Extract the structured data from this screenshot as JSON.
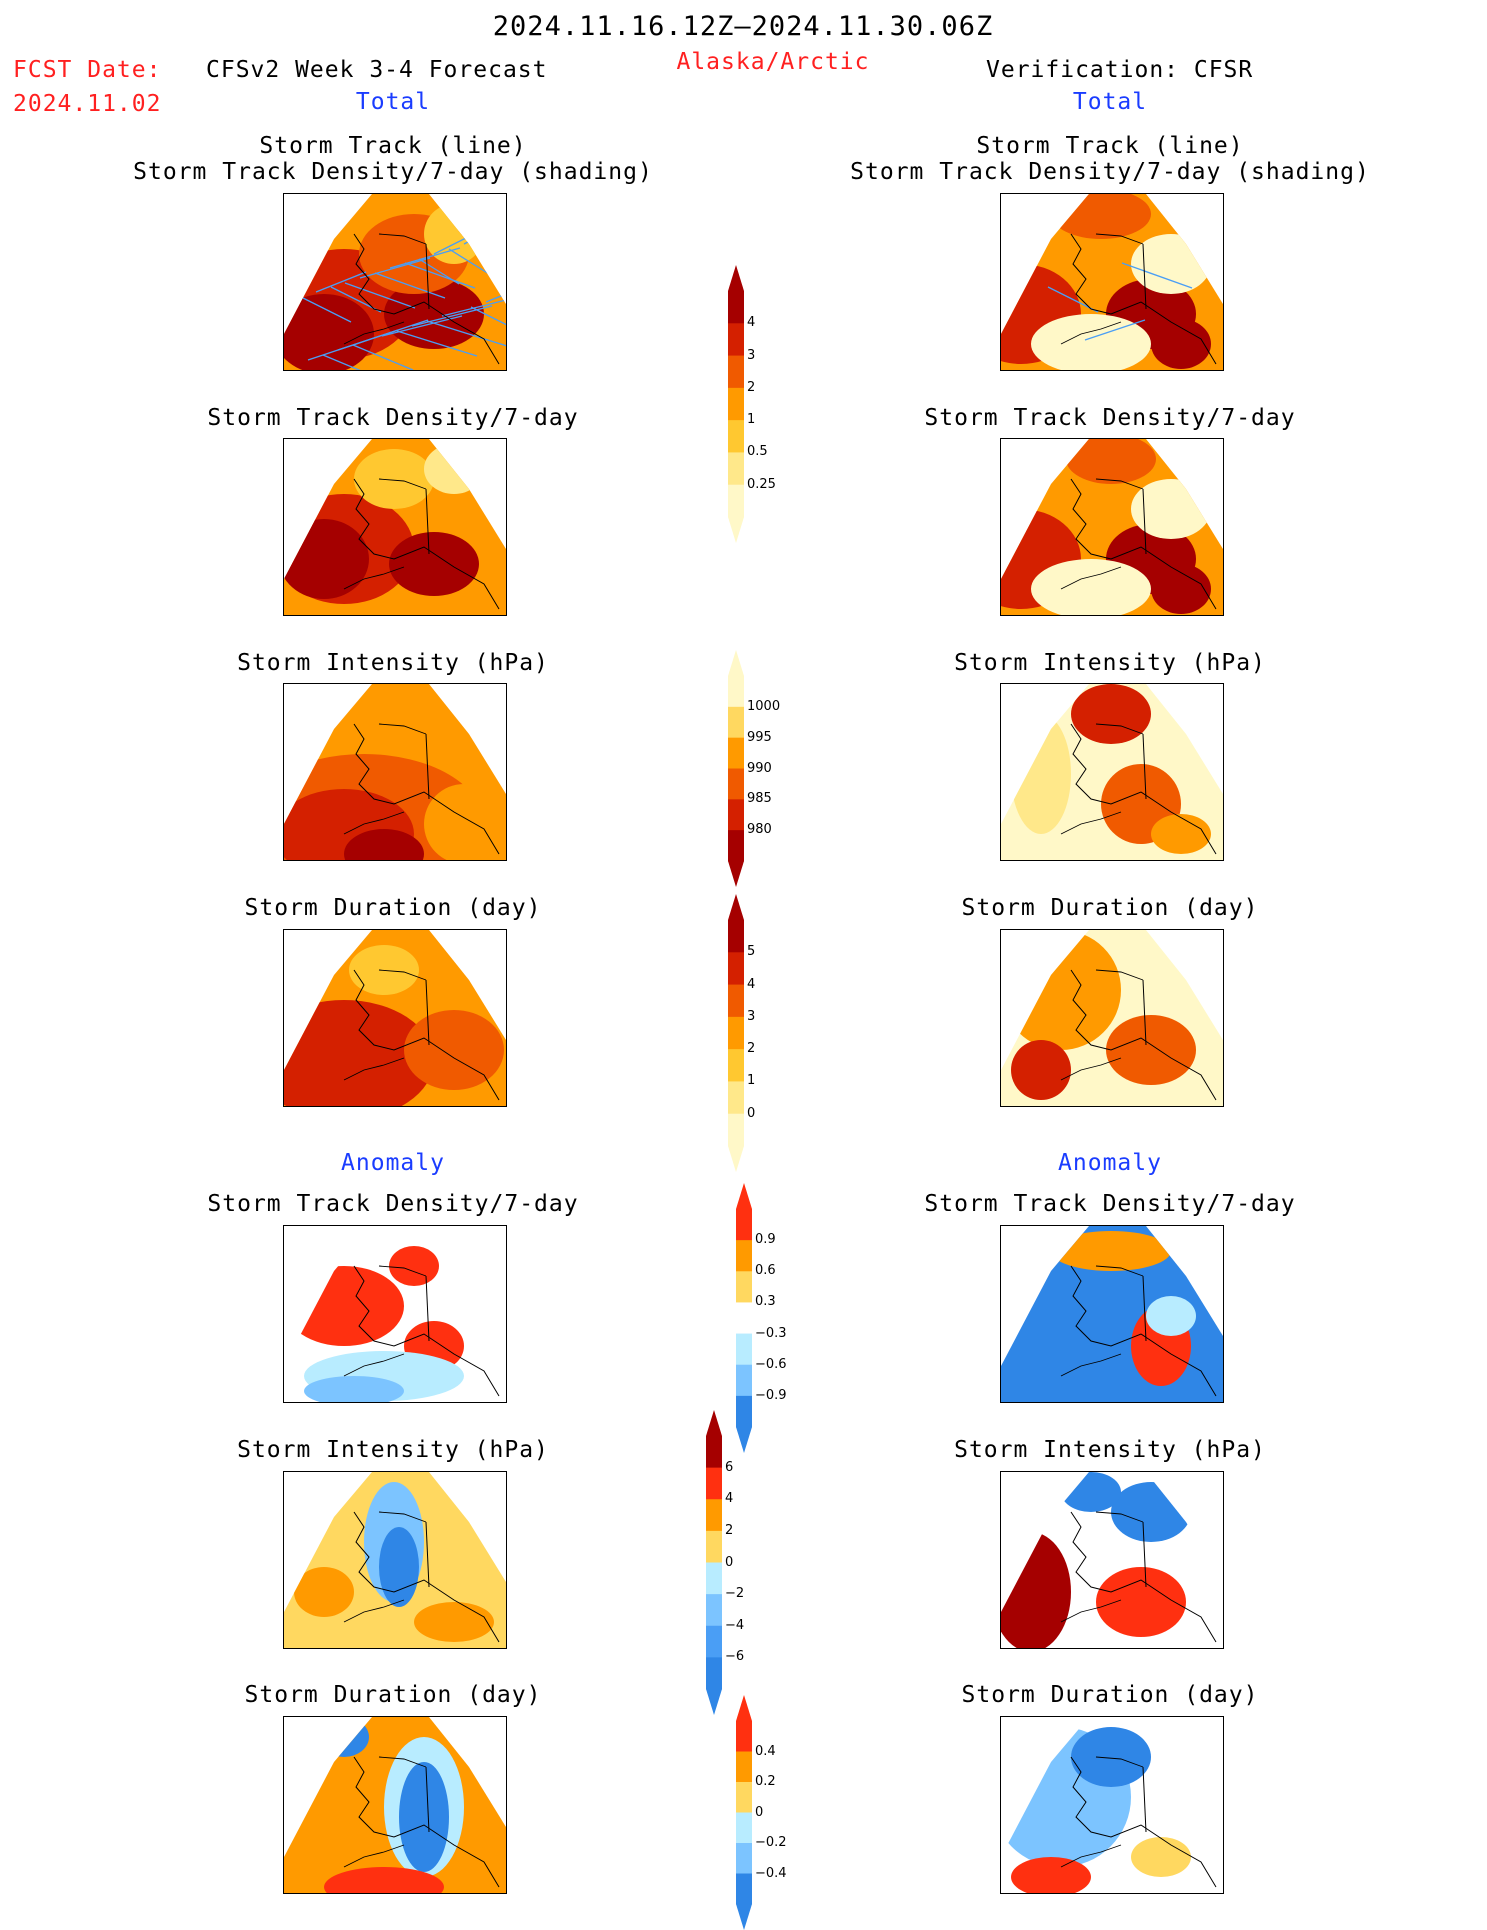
{
  "header": {
    "period": "2024.11.16.12Z–2024.11.30.06Z",
    "fcst_label": "FCST Date:",
    "fcst_date": "2024.11.02",
    "model": "CFSv2 Week 3-4 Forecast",
    "region": "Alaska/Arctic",
    "verification": "Verification: CFSR"
  },
  "columns": [
    {
      "total_label": "Total",
      "anomaly_label": "Anomaly",
      "panels": [
        {
          "title": [
            "Storm Track (line)",
            "Storm Track Density/7-day (shading)"
          ],
          "field": "track-density",
          "palette": "warm"
        },
        {
          "title": [
            "Storm Track Density/7-day"
          ],
          "field": "density",
          "palette": "warm"
        },
        {
          "title": [
            "Storm Intensity (hPa)"
          ],
          "field": "intensity",
          "palette": "warm"
        },
        {
          "title": [
            "Storm Duration (day)"
          ],
          "field": "duration",
          "palette": "warm"
        },
        {
          "title": [
            "Storm Track Density/7-day"
          ],
          "field": "density-anomaly",
          "palette": "diverging"
        },
        {
          "title": [
            "Storm Intensity (hPa)"
          ],
          "field": "intensity-anomaly",
          "palette": "diverging"
        },
        {
          "title": [
            "Storm Duration (day)"
          ],
          "field": "duration-anomaly",
          "palette": "diverging"
        }
      ]
    },
    {
      "total_label": "Total",
      "anomaly_label": "Anomaly",
      "panels": [
        {
          "title": [
            "Storm Track (line)",
            "Storm Track Density/7-day (shading)"
          ],
          "field": "track-density",
          "palette": "warm"
        },
        {
          "title": [
            "Storm Track Density/7-day"
          ],
          "field": "density",
          "palette": "warm"
        },
        {
          "title": [
            "Storm Intensity (hPa)"
          ],
          "field": "intensity",
          "palette": "warm"
        },
        {
          "title": [
            "Storm Duration (day)"
          ],
          "field": "duration",
          "palette": "warm"
        },
        {
          "title": [
            "Storm Track Density/7-day"
          ],
          "field": "density-anomaly",
          "palette": "diverging"
        },
        {
          "title": [
            "Storm Intensity (hPa)"
          ],
          "field": "intensity-anomaly",
          "palette": "diverging"
        },
        {
          "title": [
            "Storm Duration (day)"
          ],
          "field": "duration-anomaly",
          "palette": "diverging"
        }
      ]
    }
  ],
  "colorbars": [
    {
      "name": "density",
      "labels": [
        "4",
        "3",
        "2",
        "1",
        "0.5",
        "0.25"
      ],
      "colors": [
        "#a50000",
        "#d42000",
        "#f05a00",
        "#ff9a00",
        "#ffc830",
        "#ffe88a",
        "#fff8c8"
      ],
      "palette": "warm"
    },
    {
      "name": "intensity",
      "labels": [
        "1000",
        "995",
        "990",
        "985",
        "980"
      ],
      "colors": [
        "#fff8c8",
        "#ffd860",
        "#ff9a00",
        "#f05a00",
        "#d42000",
        "#a50000"
      ],
      "palette": "warm-reversed"
    },
    {
      "name": "duration",
      "labels": [
        "5",
        "4",
        "3",
        "2",
        "1",
        "0"
      ],
      "colors": [
        "#a50000",
        "#d42000",
        "#f05a00",
        "#ff9a00",
        "#ffc830",
        "#ffe88a",
        "#fff8c8"
      ],
      "palette": "warm"
    },
    {
      "name": "density-anomaly",
      "labels": [
        "0.9",
        "0.6",
        "0.3",
        "−0.3",
        "−0.6",
        "−0.9"
      ],
      "colors": [
        "#ff3010",
        "#ff9a00",
        "#ffd860",
        "#ffffff",
        "#b8ecff",
        "#7cc4ff",
        "#2f86e6"
      ],
      "palette": "diverging"
    },
    {
      "name": "intensity-anomaly",
      "labels": [
        "6",
        "4",
        "2",
        "0",
        "−2",
        "−4",
        "−6"
      ],
      "colors": [
        "#a50000",
        "#ff3010",
        "#ff9a00",
        "#ffd860",
        "#b8ecff",
        "#7cc4ff",
        "#4a9ef5",
        "#2f86e6"
      ],
      "palette": "diverging"
    },
    {
      "name": "duration-anomaly",
      "labels": [
        "0.4",
        "0.2",
        "0",
        "−0.2",
        "−0.4"
      ],
      "colors": [
        "#ff3010",
        "#ff9a00",
        "#ffd860",
        "#b8ecff",
        "#7cc4ff",
        "#2f86e6"
      ],
      "palette": "diverging"
    }
  ],
  "colors": {
    "red_text": "#ff2020",
    "blue_text": "#1a3cff",
    "track_line": "#4a9ef5"
  }
}
